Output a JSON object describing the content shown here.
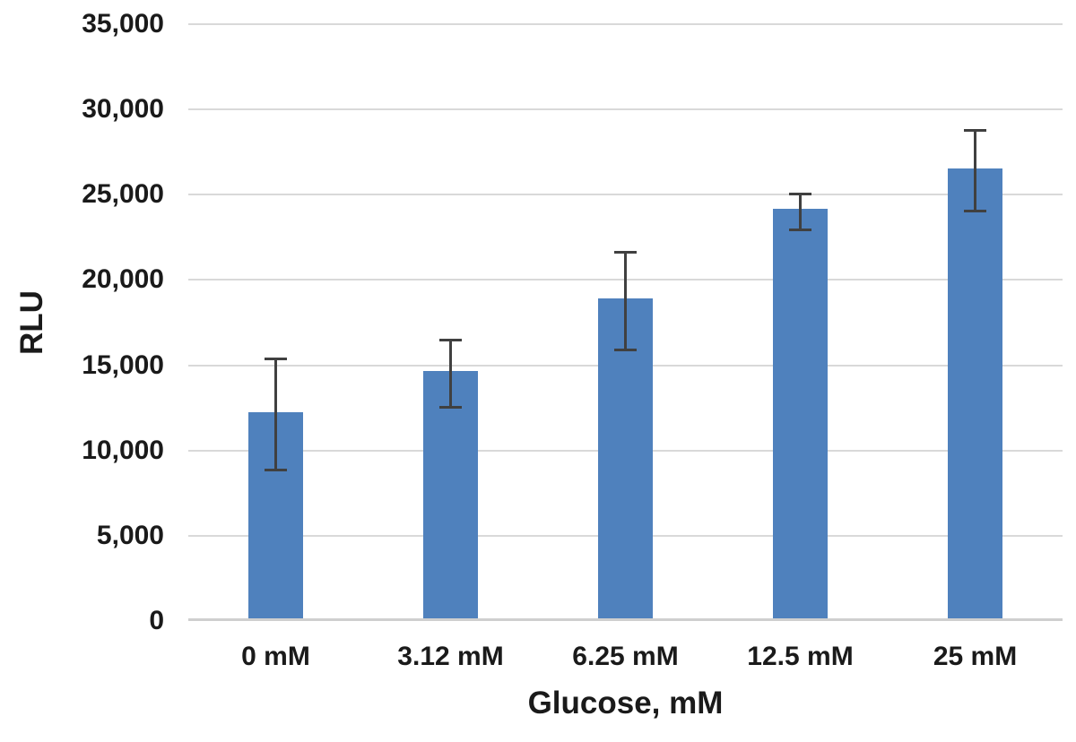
{
  "chart_data": {
    "type": "bar",
    "title": "",
    "xlabel": "Glucose, mM",
    "ylabel": "RLU",
    "categories": [
      "0 mM",
      "3.12 mM",
      "6.25 mM",
      "12.5 mM",
      "25 mM"
    ],
    "values": [
      12100,
      14500,
      18750,
      24000,
      26400
    ],
    "error_bars": [
      3250,
      1950,
      2850,
      1050,
      2350
    ],
    "ylim": [
      0,
      35000
    ],
    "ytick_step": 5000,
    "ytick_labels": [
      "0",
      "5,000",
      "10,000",
      "15,000",
      "20,000",
      "25,000",
      "30,000",
      "35,000"
    ],
    "grid": true,
    "legend": false,
    "colors": {
      "bar": "#4F81BD",
      "error_bar": "#404040",
      "gridline": "#D9D9D9",
      "axis_line": "#CFCFCF",
      "text": "#1A1A1A",
      "background": "#FFFFFF"
    }
  }
}
